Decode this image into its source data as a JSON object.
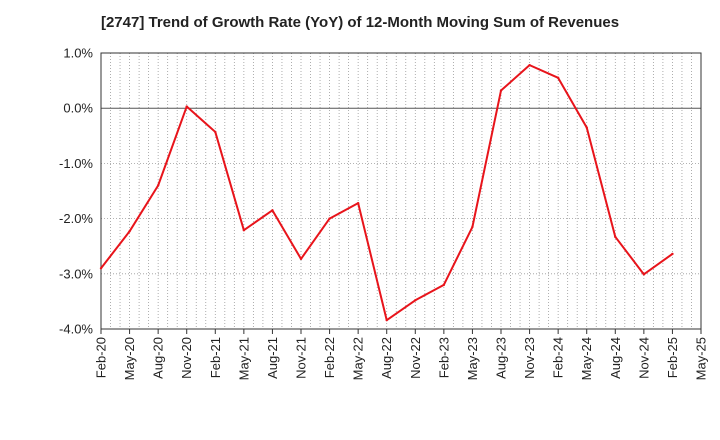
{
  "chart_data": {
    "type": "line",
    "title": "[2747]  Trend of Growth Rate (YoY) of 12-Month Moving Sum of Revenues",
    "xlabel": "",
    "ylabel": "",
    "x_ticks": [
      "Feb-20",
      "May-20",
      "Aug-20",
      "Nov-20",
      "Feb-21",
      "May-21",
      "Aug-21",
      "Nov-21",
      "Feb-22",
      "May-22",
      "Aug-22",
      "Nov-22",
      "Feb-23",
      "May-23",
      "Aug-23",
      "Nov-23",
      "Feb-24",
      "May-24",
      "Aug-24",
      "Nov-24",
      "Feb-25",
      "May-25"
    ],
    "y_ticks": [
      "1.0%",
      "0.0%",
      "-1.0%",
      "-2.0%",
      "-3.0%",
      "-4.0%"
    ],
    "ylim": [
      -4.0,
      1.0
    ],
    "x_unit": "month",
    "x_start": "Feb-20",
    "x_end": "May-25",
    "grid": true,
    "series": [
      {
        "color": "#e8141b",
        "x": [
          "Feb-20",
          "May-20",
          "Aug-20",
          "Nov-20",
          "Feb-21",
          "May-21",
          "Aug-21",
          "Nov-21",
          "Feb-22",
          "May-22",
          "Aug-22",
          "Nov-22",
          "Feb-23",
          "May-23",
          "Aug-23",
          "Nov-23",
          "Feb-24",
          "May-24",
          "Aug-24",
          "Nov-24",
          "Feb-25"
        ],
        "values": [
          -2.9,
          -2.23,
          -1.4,
          0.03,
          -0.43,
          -2.21,
          -1.85,
          -2.73,
          -2.0,
          -1.72,
          -3.84,
          -3.48,
          -3.2,
          -2.15,
          0.32,
          0.78,
          0.55,
          -0.35,
          -2.33,
          -3.01,
          -2.64
        ]
      }
    ]
  }
}
